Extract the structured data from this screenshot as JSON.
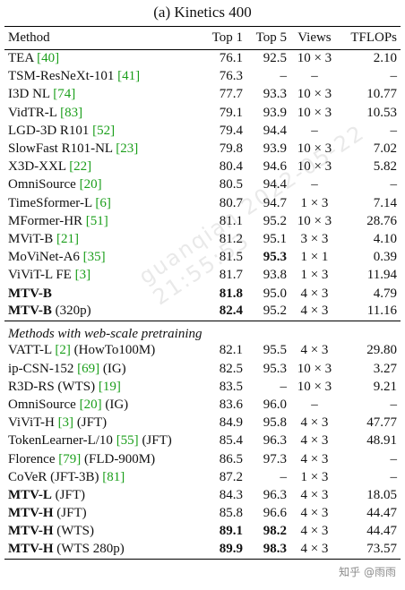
{
  "caption": "(a) Kinetics 400",
  "headers": {
    "method": "Method",
    "top1": "Top 1",
    "top5": "Top 5",
    "views": "Views",
    "tflops": "TFLOPs"
  },
  "section_label": "Methods with web-scale pretraining",
  "rows_a": [
    {
      "method": "TEA",
      "ref": "[40]",
      "extra": "",
      "top1": "76.1",
      "top5": "92.5",
      "views": "10 × 3",
      "tflops": "2.10"
    },
    {
      "method": "TSM-ResNeXt-101",
      "ref": "[41]",
      "extra": "",
      "top1": "76.3",
      "top5": "–",
      "views": "–",
      "tflops": "–"
    },
    {
      "method": "I3D NL",
      "ref": "[74]",
      "extra": "",
      "top1": "77.7",
      "top5": "93.3",
      "views": "10 × 3",
      "tflops": "10.77"
    },
    {
      "method": "VidTR-L",
      "ref": "[83]",
      "extra": "",
      "top1": "79.1",
      "top5": "93.9",
      "views": "10 × 3",
      "tflops": "10.53"
    },
    {
      "method": "LGD-3D R101",
      "ref": "[52]",
      "extra": "",
      "top1": "79.4",
      "top5": "94.4",
      "views": "–",
      "tflops": "–"
    },
    {
      "method": "SlowFast R101-NL",
      "ref": "[23]",
      "extra": "",
      "top1": "79.8",
      "top5": "93.9",
      "views": "10 × 3",
      "tflops": "7.02"
    },
    {
      "method": "X3D-XXL",
      "ref": "[22]",
      "extra": "",
      "top1": "80.4",
      "top5": "94.6",
      "views": "10 × 3",
      "tflops": "5.82"
    },
    {
      "method": "OmniSource",
      "ref": "[20]",
      "extra": "",
      "top1": "80.5",
      "top5": "94.4",
      "views": "–",
      "tflops": "–"
    },
    {
      "method": "TimeSformer-L",
      "ref": "[6]",
      "extra": "",
      "top1": "80.7",
      "top5": "94.7",
      "views": "1 × 3",
      "tflops": "7.14"
    },
    {
      "method": "MFormer-HR",
      "ref": "[51]",
      "extra": "",
      "top1": "81.1",
      "top5": "95.2",
      "views": "10 × 3",
      "tflops": "28.76"
    },
    {
      "method": "MViT-B",
      "ref": "[21]",
      "extra": "",
      "top1": "81.2",
      "top5": "95.1",
      "views": "3 × 3",
      "tflops": "4.10"
    },
    {
      "method": "MoViNet-A6",
      "ref": "[35]",
      "extra": "",
      "top1": "81.5",
      "top5": "95.3",
      "top5_bold": true,
      "views": "1 × 1",
      "tflops": "0.39"
    },
    {
      "method": "ViViT-L FE",
      "ref": "[3]",
      "extra": "",
      "top1": "81.7",
      "top5": "93.8",
      "views": "1 × 3",
      "tflops": "11.94"
    },
    {
      "method": "MTV-B",
      "ref": "",
      "extra": "",
      "bold": true,
      "top1": "81.8",
      "top1_bold": true,
      "top5": "95.0",
      "views": "4 × 3",
      "tflops": "4.79"
    },
    {
      "method": "MTV-B",
      "ref": "",
      "extra": "(320p)",
      "bold": true,
      "top1": "82.4",
      "top1_bold": true,
      "top5": "95.2",
      "views": "4 × 3",
      "tflops": "11.16"
    }
  ],
  "rows_b": [
    {
      "method": "VATT-L",
      "ref": "[2]",
      "extra": "(HowTo100M)",
      "top1": "82.1",
      "top5": "95.5",
      "views": "4 × 3",
      "tflops": "29.80"
    },
    {
      "method": "ip-CSN-152",
      "ref": "[69]",
      "extra": "(IG)",
      "top1": "82.5",
      "top5": "95.3",
      "views": "10 × 3",
      "tflops": "3.27"
    },
    {
      "method": "R3D-RS (WTS)",
      "ref": "[19]",
      "extra": "",
      "top1": "83.5",
      "top5": "–",
      "views": "10 × 3",
      "tflops": "9.21"
    },
    {
      "method": "OmniSource",
      "ref": "[20]",
      "extra": "(IG)",
      "top1": "83.6",
      "top5": "96.0",
      "views": "–",
      "tflops": "–"
    },
    {
      "method": "ViViT-H",
      "ref": "[3]",
      "extra": "(JFT)",
      "top1": "84.9",
      "top5": "95.8",
      "views": "4 × 3",
      "tflops": "47.77"
    },
    {
      "method": "TokenLearner-L/10",
      "ref": "[55]",
      "extra": "(JFT)",
      "top1": "85.4",
      "top5": "96.3",
      "views": "4 × 3",
      "tflops": "48.91"
    },
    {
      "method": "Florence",
      "ref": "[79]",
      "extra": "(FLD-900M)",
      "top1": "86.5",
      "top5": "97.3",
      "views": "4 × 3",
      "tflops": "–"
    },
    {
      "method": "CoVeR (JFT-3B)",
      "ref": "[81]",
      "extra": "",
      "top1": "87.2",
      "top5": "–",
      "views": "1 × 3",
      "tflops": "–"
    },
    {
      "method": "MTV-L",
      "ref": "",
      "extra": "(JFT)",
      "bold": true,
      "top1": "84.3",
      "top5": "96.3",
      "views": "4 × 3",
      "tflops": "18.05"
    },
    {
      "method": "MTV-H",
      "ref": "",
      "extra": "(JFT)",
      "bold": true,
      "top1": "85.8",
      "top5": "96.6",
      "views": "4 × 3",
      "tflops": "44.47"
    },
    {
      "method": "MTV-H",
      "ref": "",
      "extra": "(WTS)",
      "bold": true,
      "top1": "89.1",
      "top1_bold": true,
      "top5": "98.2",
      "top5_bold": true,
      "views": "4 × 3",
      "tflops": "44.47"
    },
    {
      "method": "MTV-H",
      "ref": "",
      "extra": "(WTS 280p)",
      "bold": true,
      "top1": "89.9",
      "top1_bold": true,
      "top5": "98.3",
      "top5_bold": true,
      "views": "4 × 3",
      "tflops": "73.57"
    }
  ],
  "watermark": "guanqian 2022-05-22 21:55:53",
  "corner_mark": "知乎 @雨雨"
}
